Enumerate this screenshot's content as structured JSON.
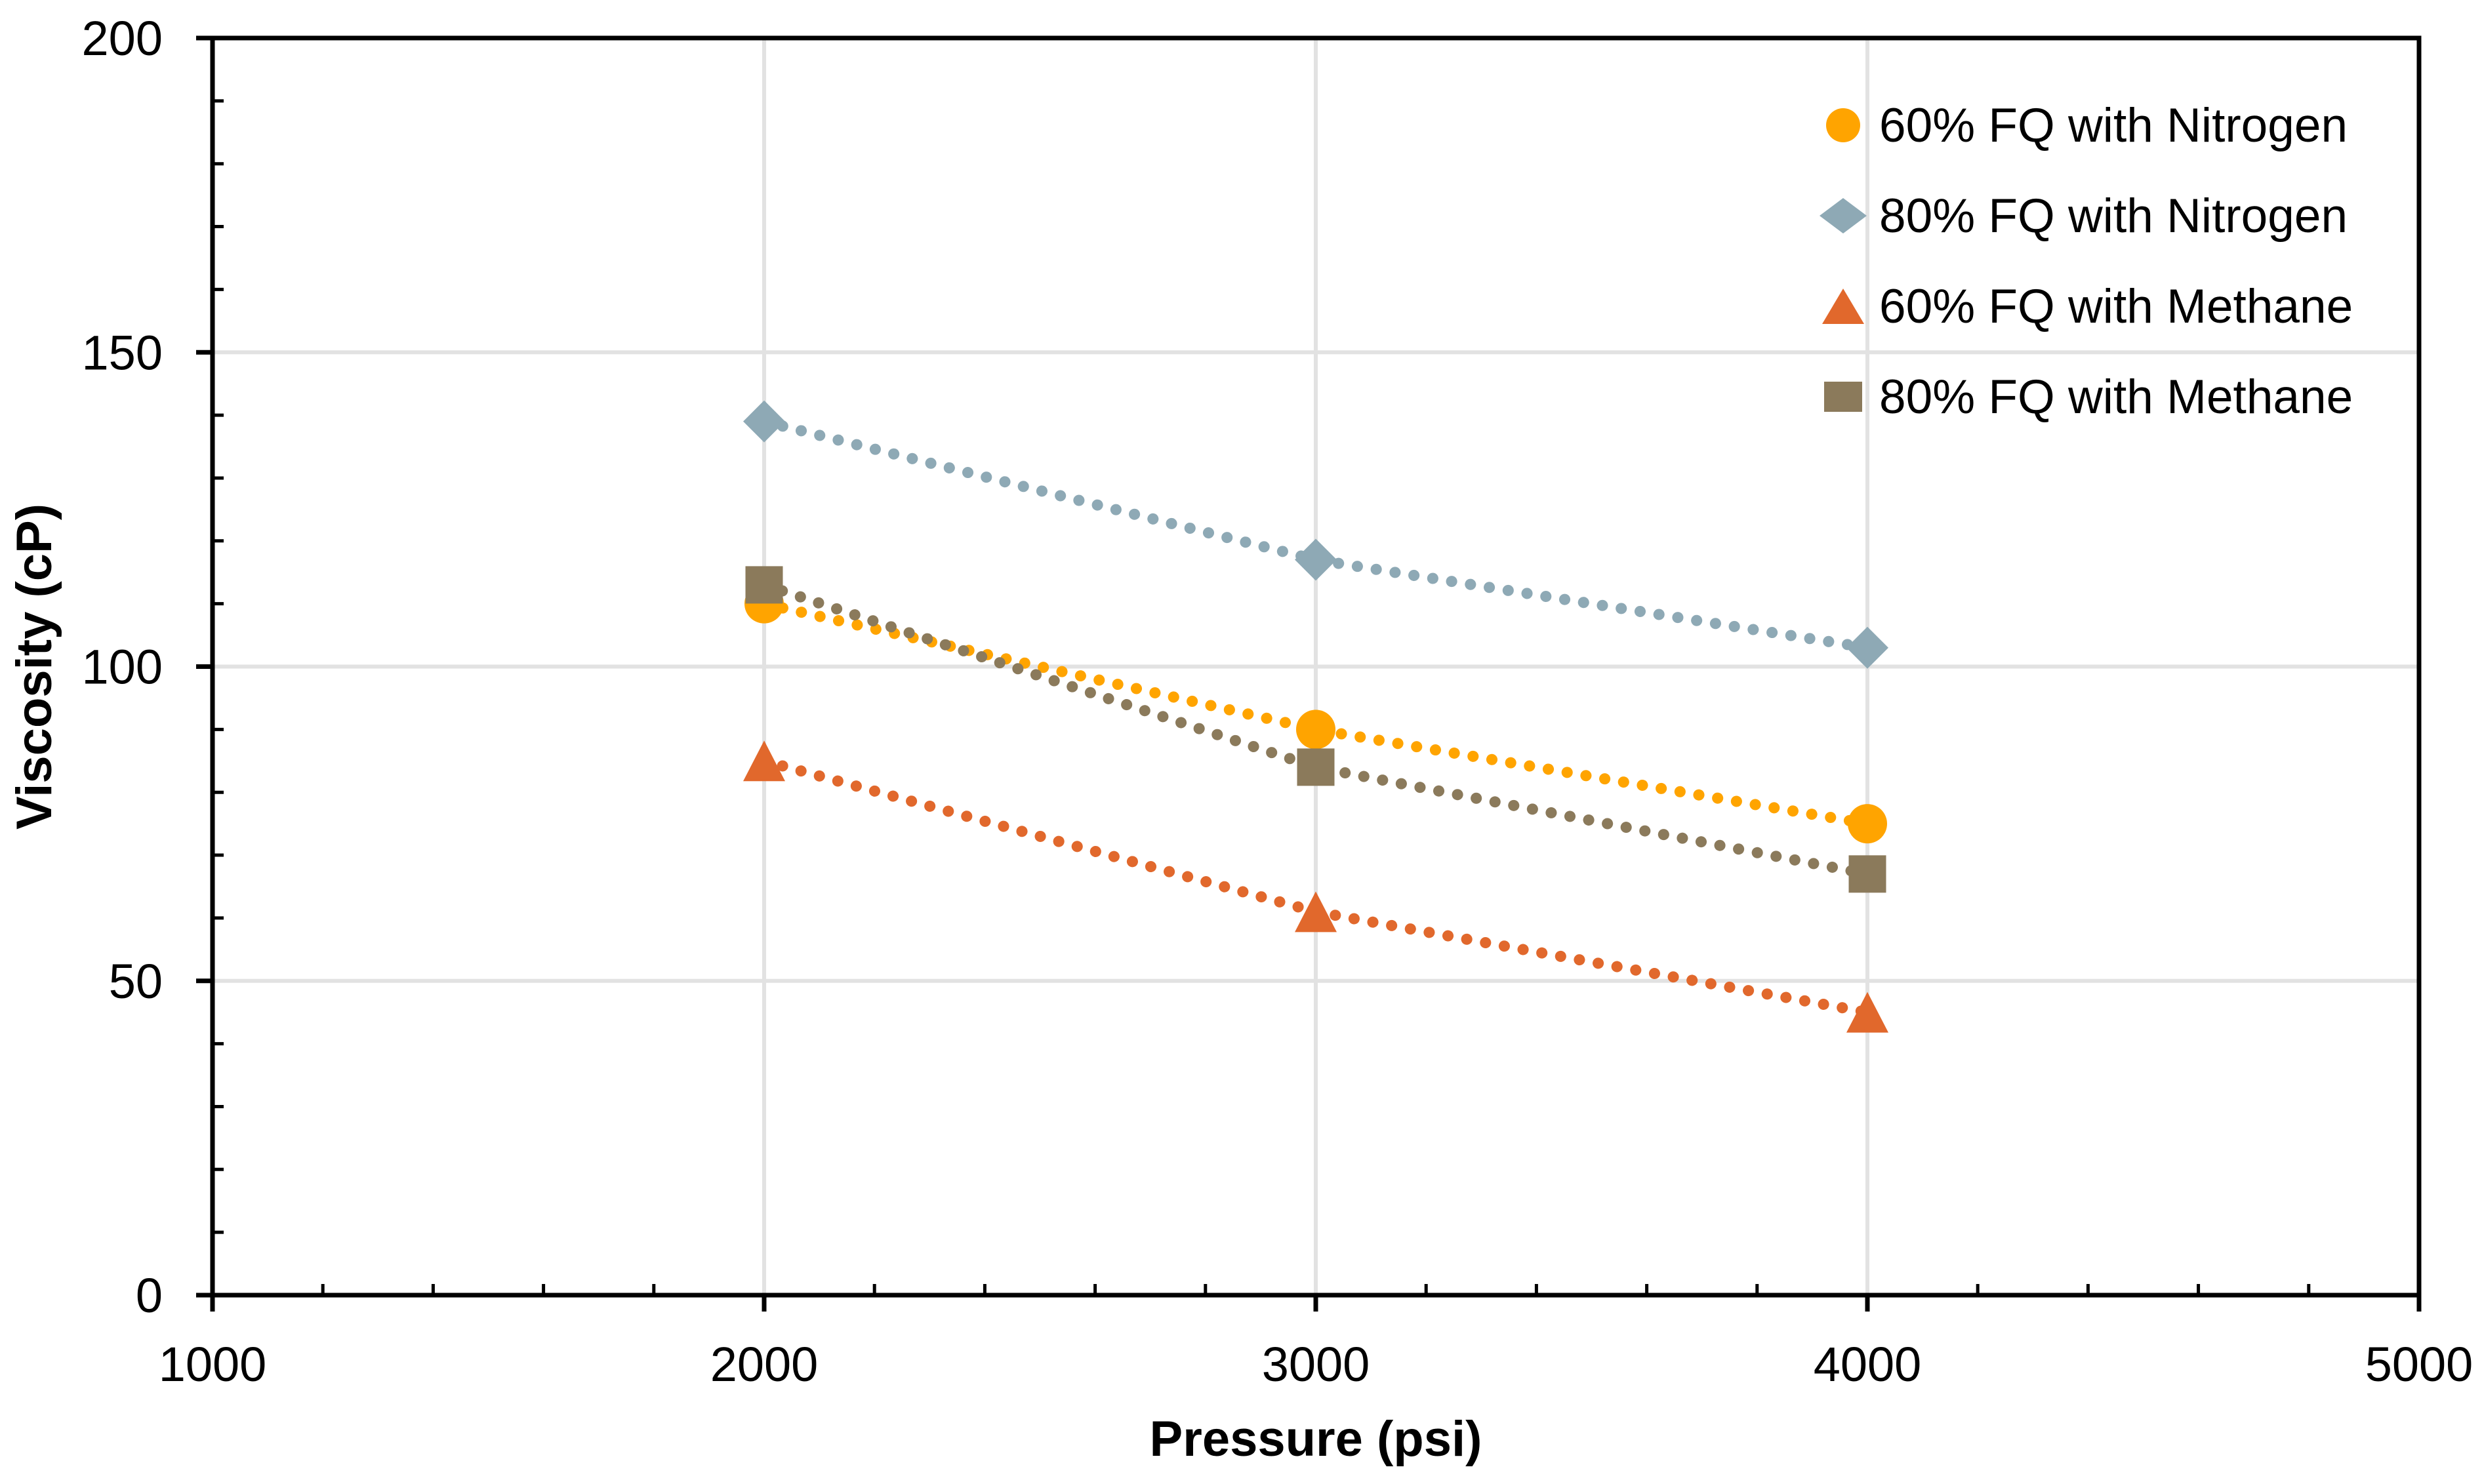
{
  "chart_data": {
    "type": "scatter",
    "title": "",
    "xlabel": "Pressure (psi)",
    "ylabel": "Viscosity (cP)",
    "x": [
      2000,
      3000,
      4000
    ],
    "series": [
      {
        "name": "60% FQ with Nitrogen",
        "marker": "circle",
        "color": "#FFA400",
        "values": [
          110,
          90,
          75
        ]
      },
      {
        "name": "80% FQ with Nitrogen",
        "marker": "diamond",
        "color": "#8EA9B5",
        "values": [
          139,
          117,
          103
        ]
      },
      {
        "name": "60% FQ with Methane",
        "marker": "triangle",
        "color": "#E1682C",
        "values": [
          85,
          61,
          45
        ]
      },
      {
        "name": "80% FQ with Methane",
        "marker": "square",
        "color": "#8B7A5B",
        "values": [
          113,
          84,
          67
        ]
      }
    ],
    "xlim": [
      1000,
      5000
    ],
    "ylim": [
      0,
      200
    ],
    "xticks": [
      1000,
      2000,
      3000,
      4000,
      5000
    ],
    "yticks": [
      0,
      50,
      100,
      150,
      200
    ],
    "x_minor_unit": 200,
    "y_minor_unit": 10,
    "line_style": "dotted",
    "grid": {
      "show_horizontal": true,
      "show_vertical": true,
      "color": "#E2E2E2"
    },
    "axis_color": "#000000",
    "background_color": "#FFFFFF",
    "legend_position": "top-right-inside"
  }
}
